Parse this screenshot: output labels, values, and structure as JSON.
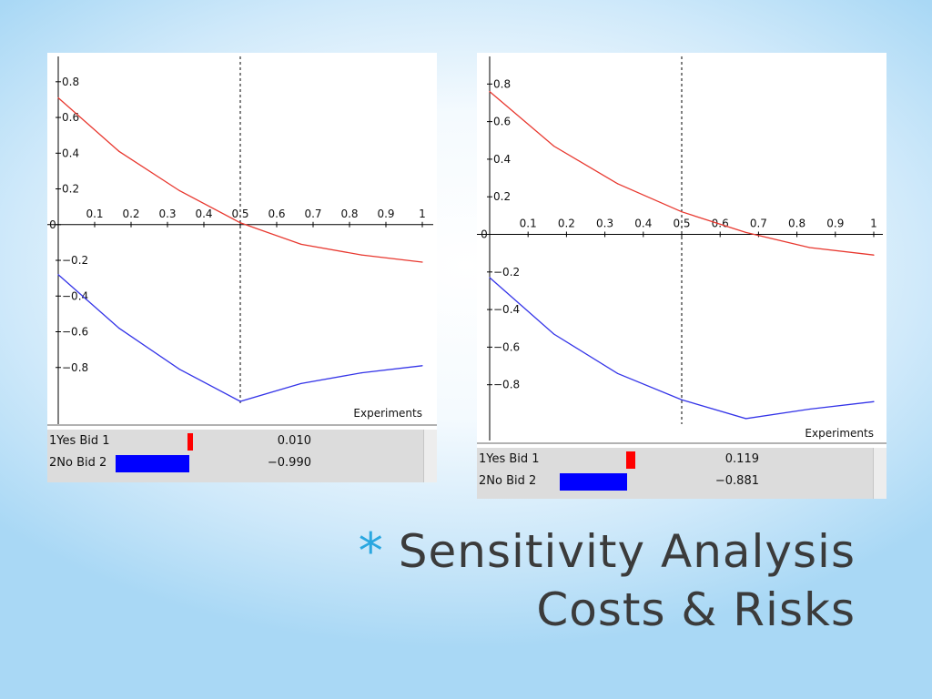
{
  "colors": {
    "yes_line": "#e8382f",
    "no_line": "#3434e8",
    "yes_bar": "#ff0000",
    "no_bar": "#0000ff",
    "bullet": "#2aa7e0"
  },
  "title": {
    "bullet": "*",
    "line1": "Sensitivity Analysis",
    "line2": "Costs & Risks"
  },
  "charts": [
    {
      "panel": "left",
      "xlabel": "Experiments",
      "table": [
        {
          "label": "1Yes Bid  1",
          "value": "0.010",
          "bar_fraction": 0.01
        },
        {
          "label": "2No Bid  2",
          "value": "−0.990",
          "bar_fraction": 0.99
        }
      ]
    },
    {
      "panel": "right",
      "xlabel": "Experiments",
      "table": [
        {
          "label": "1Yes Bid  1",
          "value": "0.119",
          "bar_fraction": 0.119
        },
        {
          "label": "2No Bid  2",
          "value": "−0.881",
          "bar_fraction": 0.881
        }
      ]
    }
  ],
  "chart_data": [
    {
      "type": "line",
      "x": [
        0,
        0.167,
        0.333,
        0.5,
        0.667,
        0.833,
        1
      ],
      "series": [
        {
          "values": [
            0.71,
            0.41,
            0.19,
            0.01,
            -0.11,
            -0.17,
            -0.21
          ]
        },
        {
          "values": [
            -0.28,
            -0.58,
            -0.81,
            -0.99,
            -0.89,
            -0.83,
            -0.79
          ]
        }
      ],
      "xlabel": "Experiments",
      "xticks": [
        "0.1",
        "0.2",
        "0.3",
        "0.4",
        "0.5",
        "0.6",
        "0.7",
        "0.8",
        "0.9",
        "1"
      ],
      "yticks": [
        "0.8",
        "0.6",
        "0.4",
        "0.2",
        "0",
        "−0.2",
        "−0.4",
        "−0.6",
        "−0.8"
      ],
      "xlim": [
        0,
        1
      ],
      "ylim": [
        -1.0,
        0.85
      ],
      "marker_x": 0.5,
      "legend": "none"
    },
    {
      "type": "line",
      "x": [
        0,
        0.167,
        0.333,
        0.5,
        0.667,
        0.833,
        1
      ],
      "series": [
        {
          "values": [
            0.76,
            0.47,
            0.27,
            0.12,
            0.01,
            -0.07,
            -0.11
          ]
        },
        {
          "values": [
            -0.23,
            -0.53,
            -0.74,
            -0.88,
            -0.98,
            -0.93,
            -0.89
          ]
        }
      ],
      "xlabel": "Experiments",
      "xticks": [
        "0.1",
        "0.2",
        "0.3",
        "0.4",
        "0.5",
        "0.6",
        "0.7",
        "0.8",
        "0.9",
        "1"
      ],
      "yticks": [
        "0.8",
        "0.6",
        "0.4",
        "0.2",
        "0",
        "−0.2",
        "−0.4",
        "−0.6",
        "−0.8"
      ],
      "xlim": [
        0,
        1
      ],
      "ylim": [
        -1.0,
        0.85
      ],
      "marker_x": 0.5,
      "legend": "none"
    }
  ]
}
